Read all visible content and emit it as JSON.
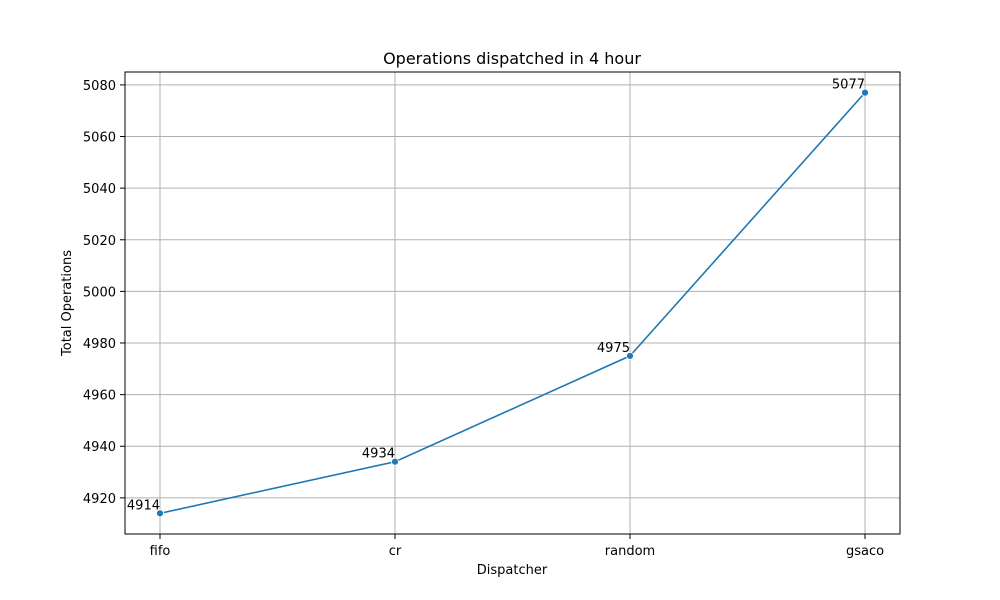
{
  "chart_data": {
    "type": "line",
    "title": "Operations dispatched in 4 hour",
    "xlabel": "Dispatcher",
    "ylabel": "Total Operations",
    "categories": [
      "fifo",
      "cr",
      "random",
      "gsaco"
    ],
    "series": [
      {
        "values": [
          4914,
          4934,
          4975,
          5077
        ]
      }
    ],
    "data_labels": [
      "4914",
      "4934",
      "4975",
      "5077"
    ],
    "yticks": [
      4920,
      4940,
      4960,
      4980,
      5000,
      5020,
      5040,
      5060,
      5080
    ],
    "ylim": [
      4906,
      5085
    ],
    "grid": true,
    "marker": "circle",
    "line_color": "#1f77b4"
  }
}
